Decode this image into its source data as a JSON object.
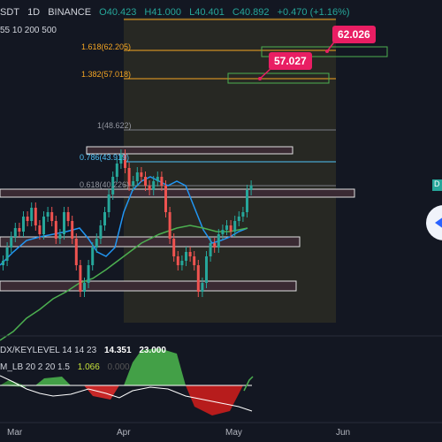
{
  "header": {
    "symbol": "SDT",
    "interval": "1D",
    "exchange": "BINANCE",
    "open": "O40.423",
    "high": "H41.000",
    "low": "L40.401",
    "close": "C40.892",
    "change": "+0.470 (+1.16%)",
    "ma_params": "55 10 200 500"
  },
  "fib_levels": {
    "l1": "1.618(62.205)",
    "l2": "1.382(57.018)",
    "l3": "1(48.622)",
    "l4": "0.786(43.919)",
    "l5": "0.618(40.226)"
  },
  "callouts": {
    "upper": "62.026",
    "lower": "57.027"
  },
  "indicators": {
    "ind1_name": "DX/KEYLEVEL 14 14 23",
    "ind1_v1": "14.351",
    "ind1_v2": "23.000",
    "ind2_name": "M_LB 20 2 20 1.5",
    "ind2_v1": "1.066",
    "ind2_v2": "0.000"
  },
  "xaxis": {
    "mar": "Mar",
    "apr": "Apr",
    "may": "May",
    "jun": "Jun"
  },
  "price_tag": "D",
  "colors": {
    "bg": "#131722",
    "up": "#26a69a",
    "down": "#ef5350",
    "accent": "#e91e63",
    "fib": "#f5a623"
  }
}
